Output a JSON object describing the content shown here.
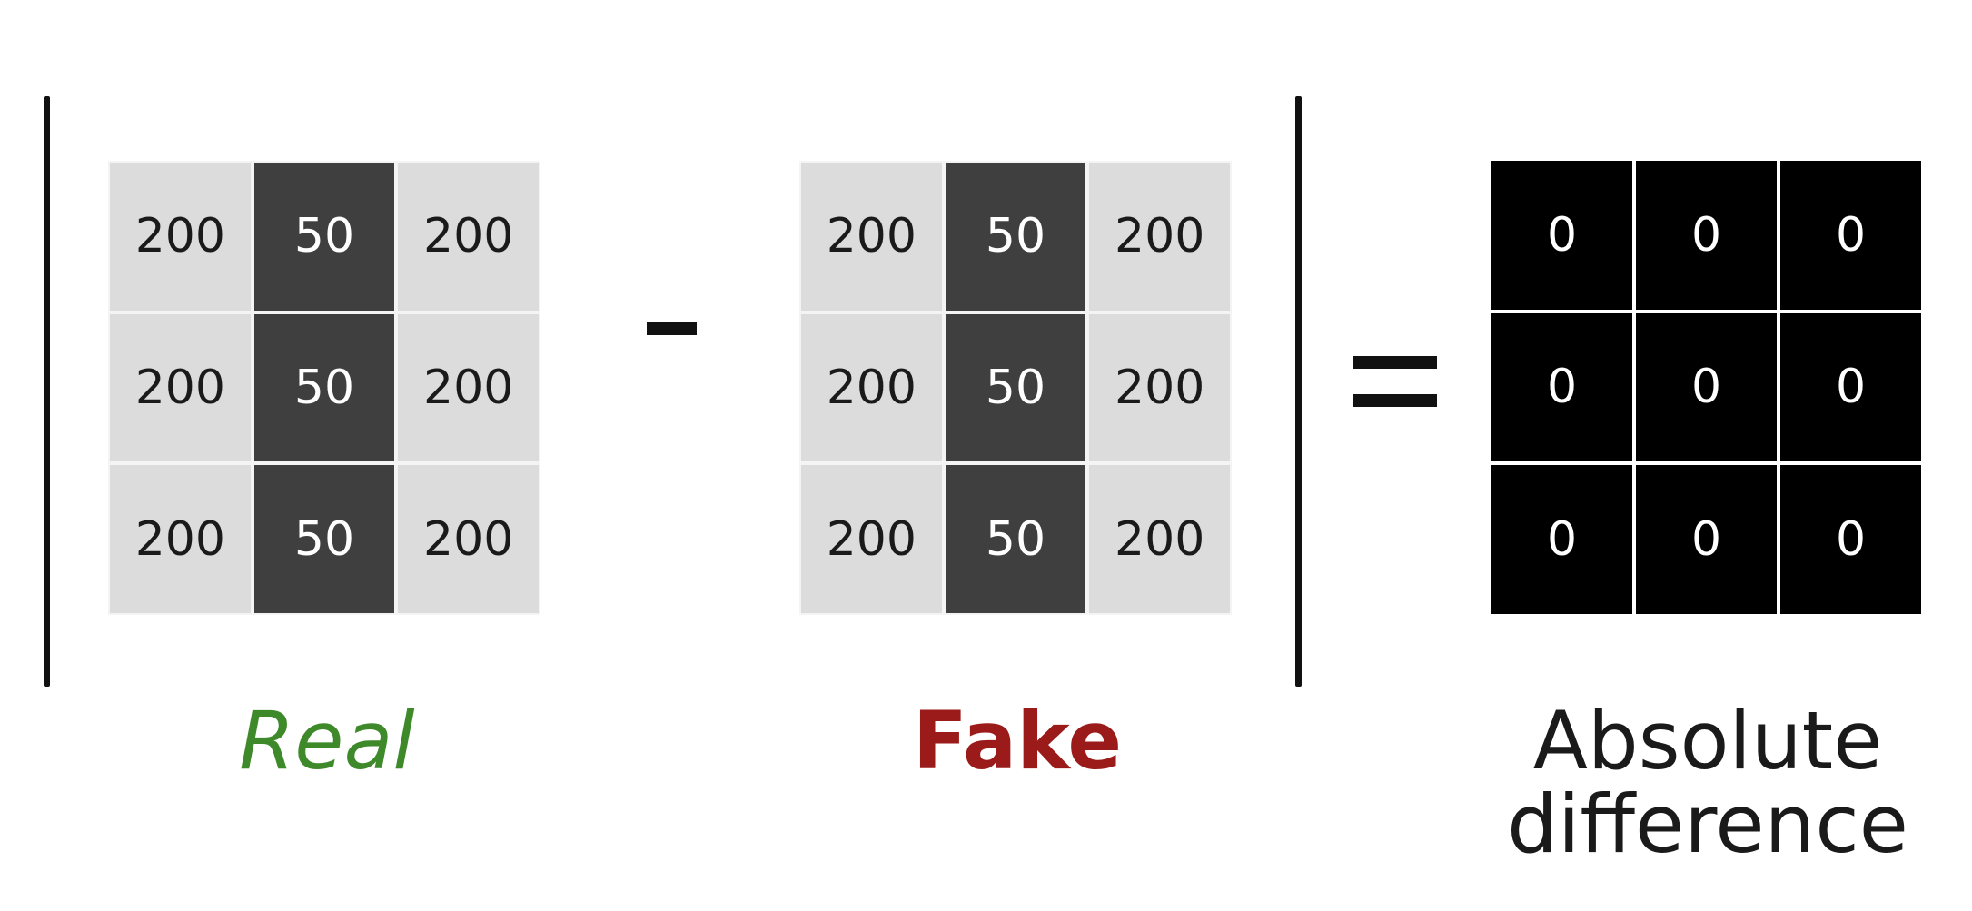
{
  "real": {
    "label": "Real",
    "label_color": "#3e8a2a",
    "matrix": [
      [
        "200",
        "50",
        "200"
      ],
      [
        "200",
        "50",
        "200"
      ],
      [
        "200",
        "50",
        "200"
      ]
    ]
  },
  "operator_minus": "-",
  "fake": {
    "label": "Fake",
    "label_color": "#9b1b1b",
    "matrix": [
      [
        "200",
        "50",
        "200"
      ],
      [
        "200",
        "50",
        "200"
      ],
      [
        "200",
        "50",
        "200"
      ]
    ]
  },
  "operator_equals": "=",
  "difference": {
    "label": "Absolute difference",
    "matrix": [
      [
        "0",
        "0",
        "0"
      ],
      [
        "0",
        "0",
        "0"
      ],
      [
        "0",
        "0",
        "0"
      ]
    ]
  },
  "colors": {
    "light_cell": "#dcdcdc",
    "dark_cell": "#3f3f3f",
    "black_cell": "#000000"
  }
}
